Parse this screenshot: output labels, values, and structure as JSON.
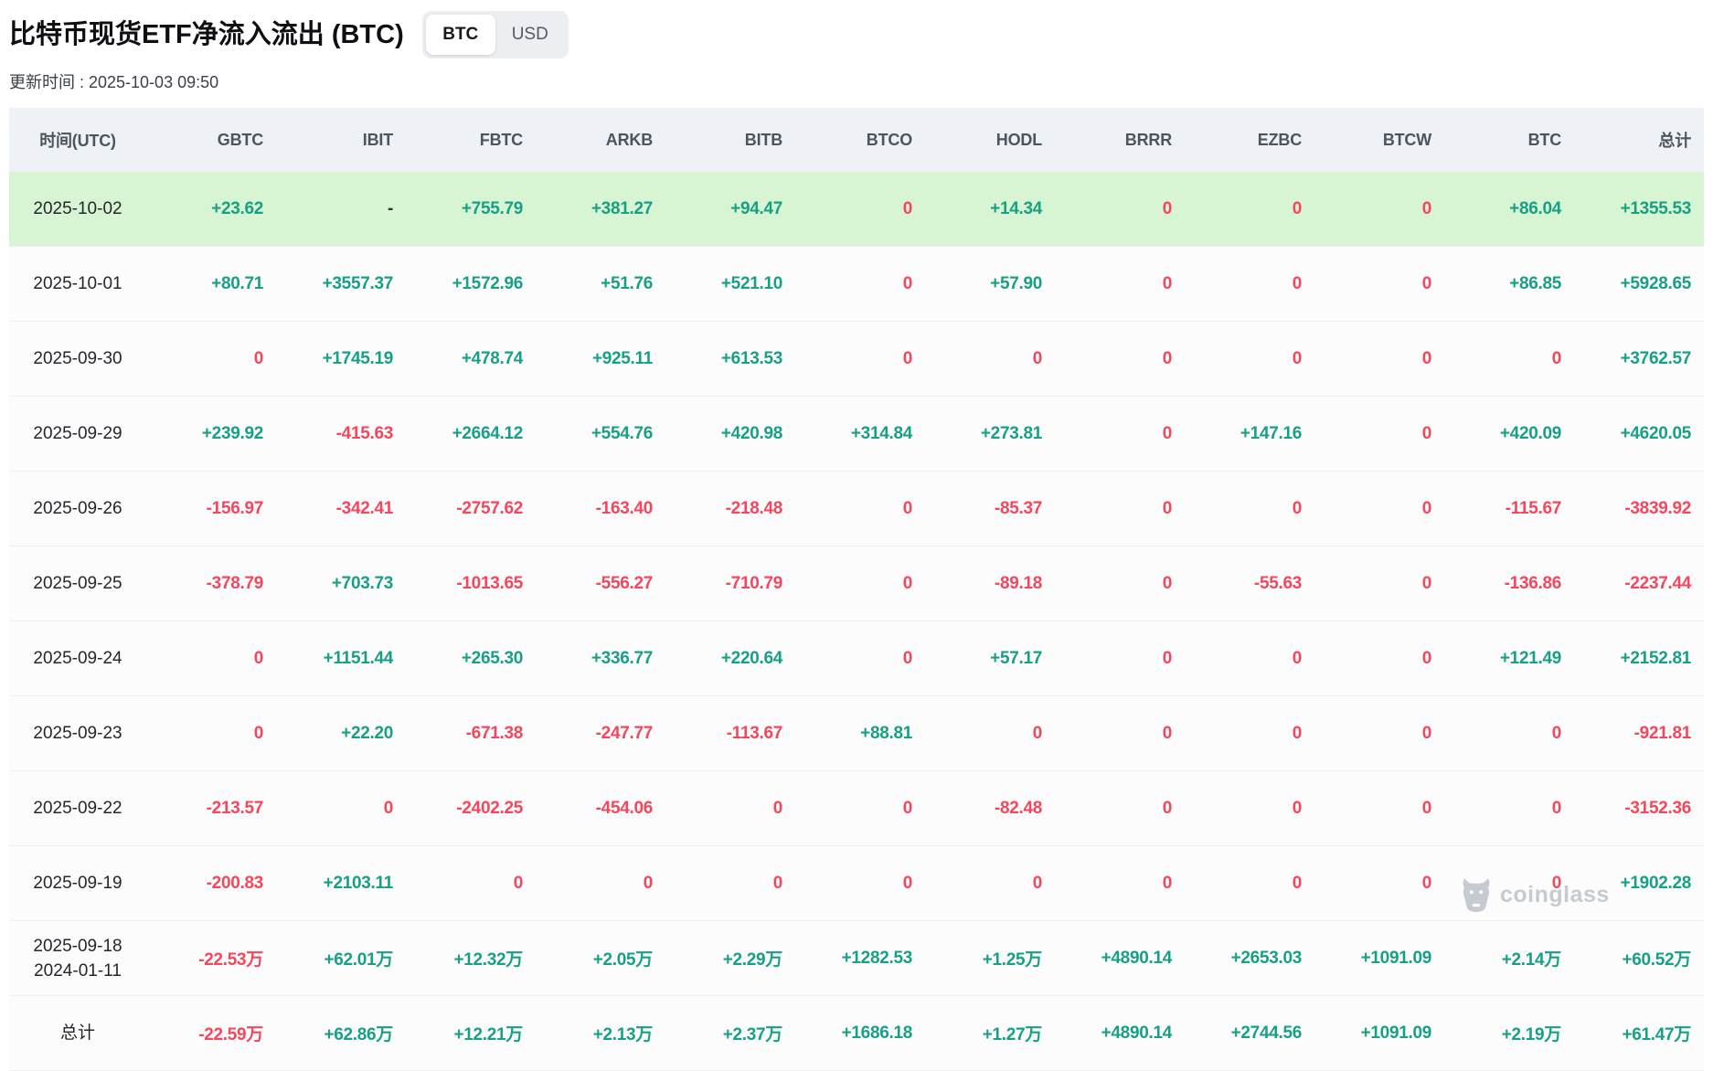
{
  "header": {
    "title": "比特币现货ETF净流入流出 (BTC)",
    "toggle": {
      "options": [
        "BTC",
        "USD"
      ],
      "selected": "BTC"
    },
    "updated": "更新时间 : 2025-10-03 09:50"
  },
  "table": {
    "columns": [
      "时间(UTC)",
      "GBTC",
      "IBIT",
      "FBTC",
      "ARKB",
      "BITB",
      "BTCO",
      "HODL",
      "BRRR",
      "EZBC",
      "BTCW",
      "BTC",
      "总计"
    ],
    "rows": [
      {
        "dates": [
          "2025-10-02"
        ],
        "highlight": true,
        "values": [
          "+23.62",
          "-",
          "+755.79",
          "+381.27",
          "+94.47",
          "0",
          "+14.34",
          "0",
          "0",
          "0",
          "+86.04",
          "+1355.53"
        ]
      },
      {
        "dates": [
          "2025-10-01"
        ],
        "values": [
          "+80.71",
          "+3557.37",
          "+1572.96",
          "+51.76",
          "+521.10",
          "0",
          "+57.90",
          "0",
          "0",
          "0",
          "+86.85",
          "+5928.65"
        ]
      },
      {
        "dates": [
          "2025-09-30"
        ],
        "values": [
          "0",
          "+1745.19",
          "+478.74",
          "+925.11",
          "+613.53",
          "0",
          "0",
          "0",
          "0",
          "0",
          "0",
          "+3762.57"
        ]
      },
      {
        "dates": [
          "2025-09-29"
        ],
        "values": [
          "+239.92",
          "-415.63",
          "+2664.12",
          "+554.76",
          "+420.98",
          "+314.84",
          "+273.81",
          "0",
          "+147.16",
          "0",
          "+420.09",
          "+4620.05"
        ]
      },
      {
        "dates": [
          "2025-09-26"
        ],
        "values": [
          "-156.97",
          "-342.41",
          "-2757.62",
          "-163.40",
          "-218.48",
          "0",
          "-85.37",
          "0",
          "0",
          "0",
          "-115.67",
          "-3839.92"
        ]
      },
      {
        "dates": [
          "2025-09-25"
        ],
        "values": [
          "-378.79",
          "+703.73",
          "-1013.65",
          "-556.27",
          "-710.79",
          "0",
          "-89.18",
          "0",
          "-55.63",
          "0",
          "-136.86",
          "-2237.44"
        ]
      },
      {
        "dates": [
          "2025-09-24"
        ],
        "values": [
          "0",
          "+1151.44",
          "+265.30",
          "+336.77",
          "+220.64",
          "0",
          "+57.17",
          "0",
          "0",
          "0",
          "+121.49",
          "+2152.81"
        ]
      },
      {
        "dates": [
          "2025-09-23"
        ],
        "values": [
          "0",
          "+22.20",
          "-671.38",
          "-247.77",
          "-113.67",
          "+88.81",
          "0",
          "0",
          "0",
          "0",
          "0",
          "-921.81"
        ]
      },
      {
        "dates": [
          "2025-09-22"
        ],
        "values": [
          "-213.57",
          "0",
          "-2402.25",
          "-454.06",
          "0",
          "0",
          "-82.48",
          "0",
          "0",
          "0",
          "0",
          "-3152.36"
        ]
      },
      {
        "dates": [
          "2025-09-19"
        ],
        "values": [
          "-200.83",
          "+2103.11",
          "0",
          "0",
          "0",
          "0",
          "0",
          "0",
          "0",
          "0",
          "0",
          "+1902.28"
        ]
      },
      {
        "dates": [
          "2025-09-18",
          "2024-01-11"
        ],
        "values": [
          "-22.53万",
          "+62.01万",
          "+12.32万",
          "+2.05万",
          "+2.29万",
          "+1282.53",
          "+1.25万",
          "+4890.14",
          "+2653.03",
          "+1091.09",
          "+2.14万",
          "+60.52万"
        ]
      },
      {
        "dates": [
          "总计"
        ],
        "is_total": true,
        "values": [
          "-22.59万",
          "+62.86万",
          "+12.21万",
          "+2.13万",
          "+2.37万",
          "+1686.18",
          "+1.27万",
          "+4890.14",
          "+2744.56",
          "+1091.09",
          "+2.19万",
          "+61.47万"
        ]
      }
    ]
  },
  "watermark": {
    "text": "coinglass"
  },
  "colors": {
    "positive": "#17a086",
    "negative": "#f6465d",
    "highlight_row_bg": "#d8f5d3",
    "header_bg": "#eef1f5"
  }
}
